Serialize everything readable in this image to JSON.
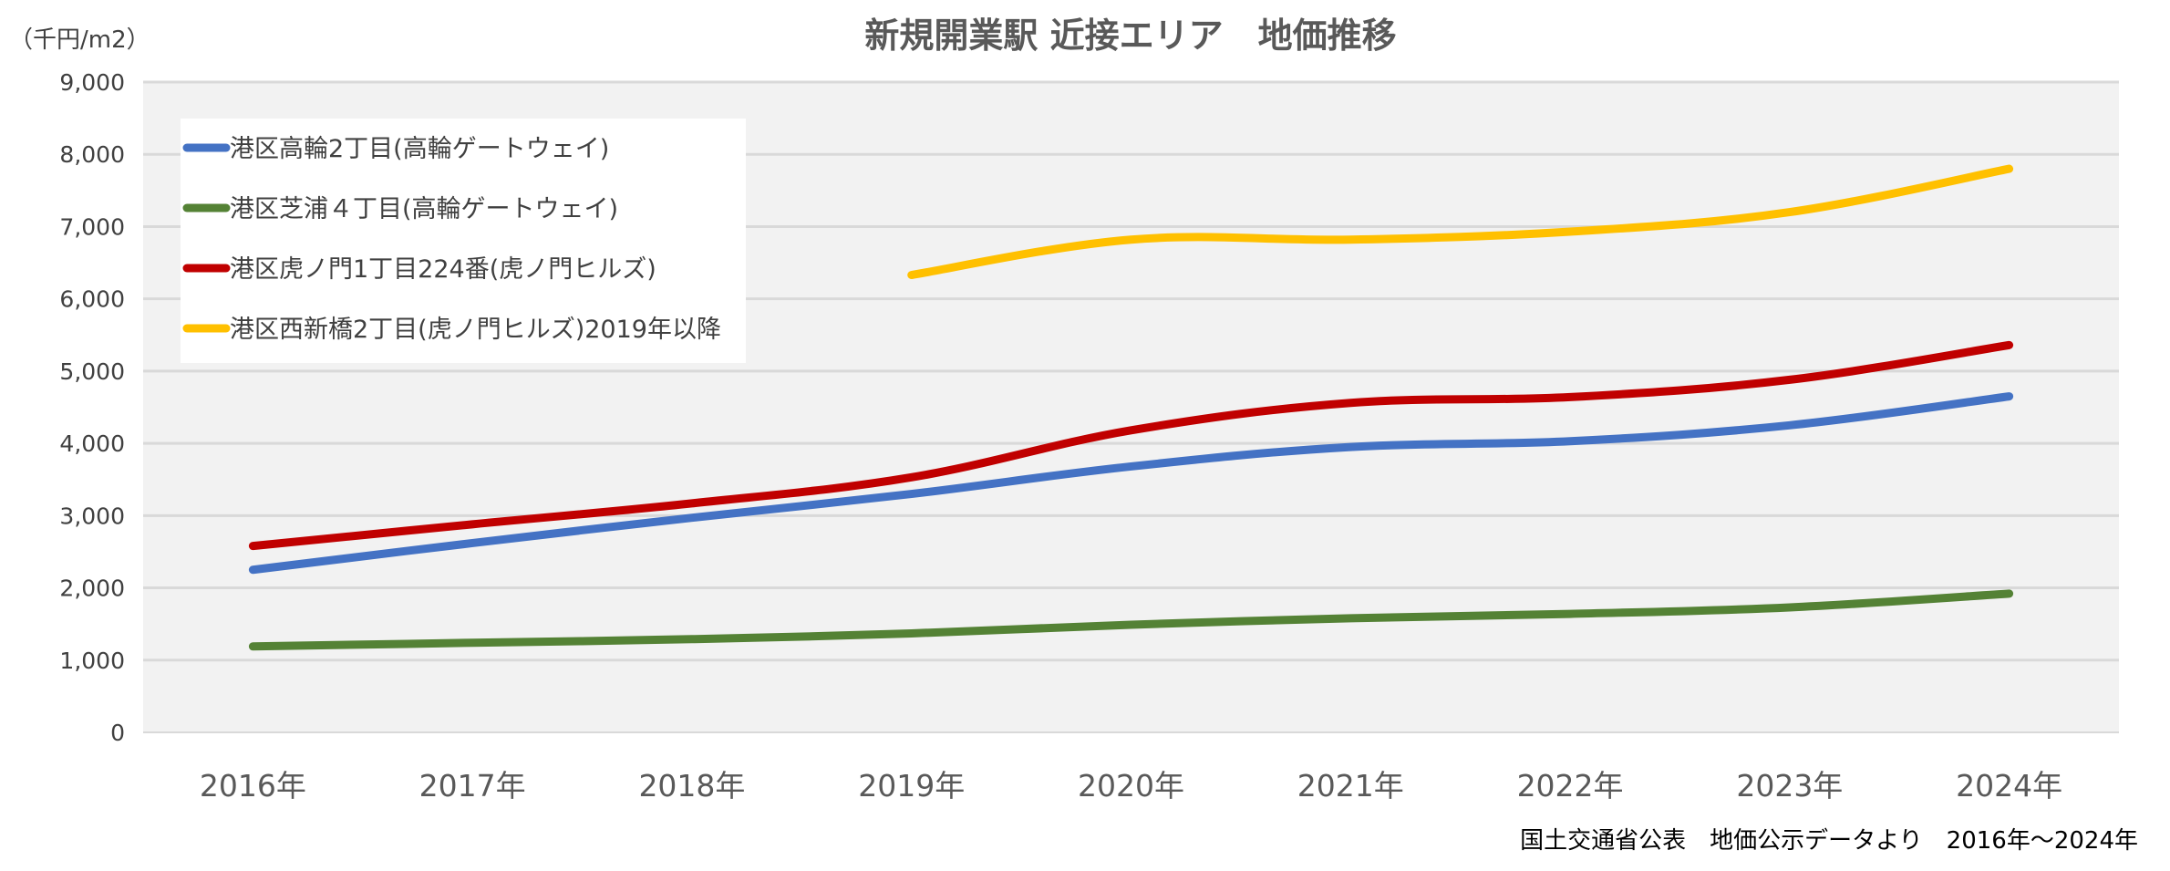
{
  "chart_data": {
    "type": "line",
    "title": "新規開業駅 近接エリア　地価推移",
    "unit_label": "（千円/m2）",
    "categories": [
      "2016年",
      "2017年",
      "2018年",
      "2019年",
      "2020年",
      "2021年",
      "2022年",
      "2023年",
      "2024年"
    ],
    "ylim": [
      0,
      9000
    ],
    "yticks": [
      0,
      1000,
      2000,
      3000,
      4000,
      5000,
      6000,
      7000,
      8000,
      9000
    ],
    "ytick_labels": [
      "0",
      "1,000",
      "2,000",
      "3,000",
      "4,000",
      "5,000",
      "6,000",
      "7,000",
      "8,000",
      "9,000"
    ],
    "grid": true,
    "legend_position": "top-left",
    "series": [
      {
        "name": "港区高輪2丁目(高輪ゲートウェイ)",
        "color": "#4472c4",
        "values": [
          2250,
          2620,
          2970,
          3300,
          3680,
          3950,
          4030,
          4250,
          4650
        ]
      },
      {
        "name": "港区芝浦４丁目(高輪ゲートウェイ)",
        "color": "#548235",
        "values": [
          1190,
          1240,
          1290,
          1370,
          1490,
          1580,
          1640,
          1730,
          1920
        ]
      },
      {
        "name": "港区虎ノ門1丁目224番(虎ノ門ヒルズ)",
        "color": "#c00000",
        "values": [
          2580,
          2880,
          3170,
          3530,
          4180,
          4560,
          4640,
          4880,
          5360
        ]
      },
      {
        "name": "港区西新橋2丁目(虎ノ門ヒルズ)2019年以降",
        "color": "#ffc000",
        "values": [
          null,
          null,
          null,
          6330,
          6820,
          6820,
          6930,
          7200,
          7800
        ]
      }
    ],
    "source_note": "国土交通省公表　地価公示データより　2016年～2024年"
  }
}
